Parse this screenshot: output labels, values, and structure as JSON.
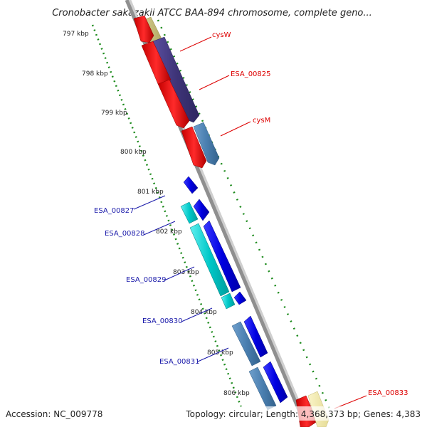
{
  "title": "Cronobacter sakazakii ATCC BAA-894 chromosome, complete geno...",
  "footer": {
    "accession": "Accession: NC_009778",
    "topology": "Topology: circular; Length: 4,368,373 bp; Genes: 4,383"
  },
  "colors": {
    "forward_label": "#dd0000",
    "reverse_label": "#1a1aaa",
    "backbone": "#8f8f8f",
    "ticks": "#1b8a1b",
    "red_gene": "#ff0000",
    "purple_gene": "#4a3f8c",
    "steel_gene": "#4a7fb0",
    "blue_gene": "#0000e0",
    "cyan_gene": "#00c8c8",
    "olive_gene": "#c8bf72",
    "pale_gene": "#f0e8a8"
  },
  "ticks": [
    {
      "label": "797 kbp"
    },
    {
      "label": "798 kbp"
    },
    {
      "label": "799 kbp"
    },
    {
      "label": "800 kbp"
    },
    {
      "label": "801 kbp"
    },
    {
      "label": "802 kbp"
    },
    {
      "label": "803 kbp"
    },
    {
      "label": "804 kbp"
    },
    {
      "label": "805 kbp"
    },
    {
      "label": "806 kbp"
    }
  ],
  "gene_labels": [
    {
      "name": "cysW",
      "strand": "forward"
    },
    {
      "name": "ESA_00825",
      "strand": "forward"
    },
    {
      "name": "cysM",
      "strand": "forward"
    },
    {
      "name": "ESA_00827",
      "strand": "reverse"
    },
    {
      "name": "ESA_00828",
      "strand": "reverse"
    },
    {
      "name": "ESA_00829",
      "strand": "reverse"
    },
    {
      "name": "ESA_00830",
      "strand": "reverse"
    },
    {
      "name": "ESA_00831",
      "strand": "reverse"
    },
    {
      "name": "ESA_00833",
      "strand": "forward"
    }
  ]
}
